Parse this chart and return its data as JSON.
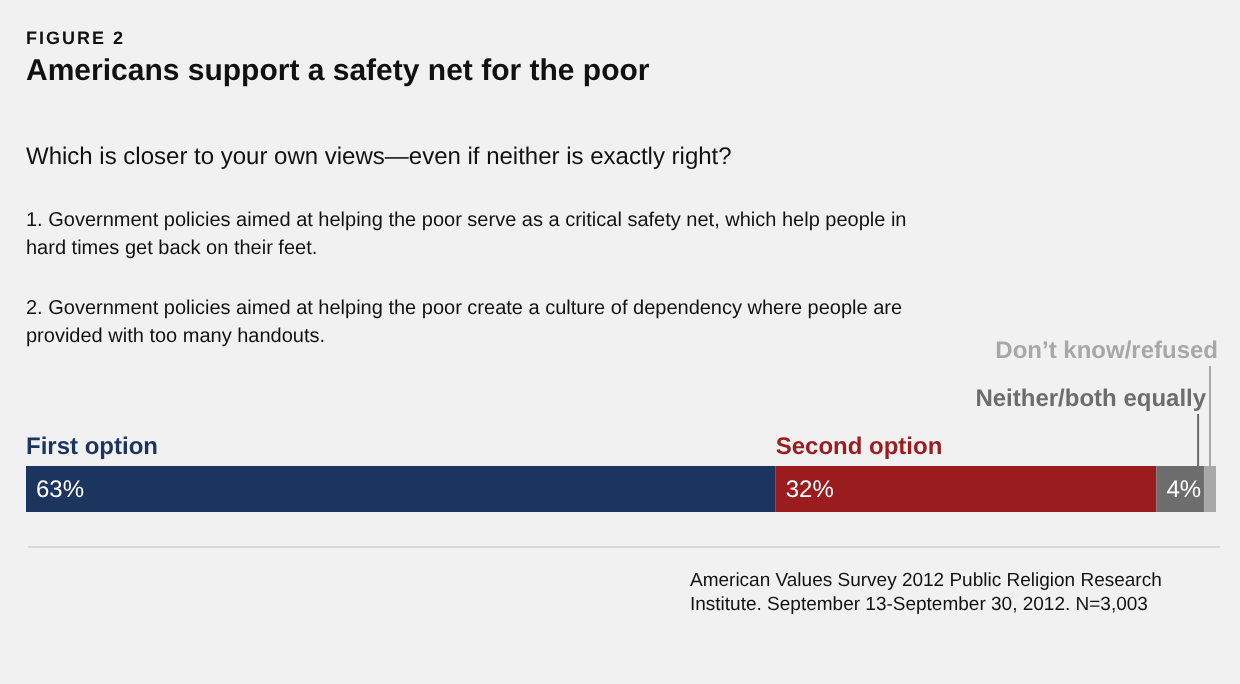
{
  "chart_data": {
    "type": "bar",
    "orientation": "horizontal",
    "stacked": true,
    "title": "Americans support a safety net for the poor",
    "subtitle": "Which is closer to your own views—even if neither is exactly right?",
    "annotations": [
      "FIGURE 2",
      "1. Government policies aimed at helping the poor serve as a critical safety net, which help people in hard times get back on their feet.",
      "2. Government policies aimed at helping the poor create a culture of dependency where people are provided with too many handouts.",
      "American Values Survey 2012 Public Religion Research Institute. September 13-September 30, 2012. N=3,003"
    ],
    "categories": [
      null
    ],
    "xlim": [
      0,
      100
    ],
    "tick_labels": false,
    "legend": false,
    "series": [
      {
        "name": "First option",
        "color": "#1c355e",
        "values": [
          63
        ],
        "value_labels": [
          "63%"
        ]
      },
      {
        "name": "Second option",
        "color": "#9b1c1f",
        "values": [
          32
        ],
        "value_labels": [
          "32%"
        ]
      },
      {
        "name": "Neither/both equally",
        "color": "#6d6d6d",
        "values": [
          4
        ],
        "value_labels": [
          "4%"
        ]
      },
      {
        "name": "Don’t know/refused",
        "color": "#a8a8a8",
        "values": [
          1
        ],
        "value_labels": [
          null
        ]
      }
    ]
  }
}
